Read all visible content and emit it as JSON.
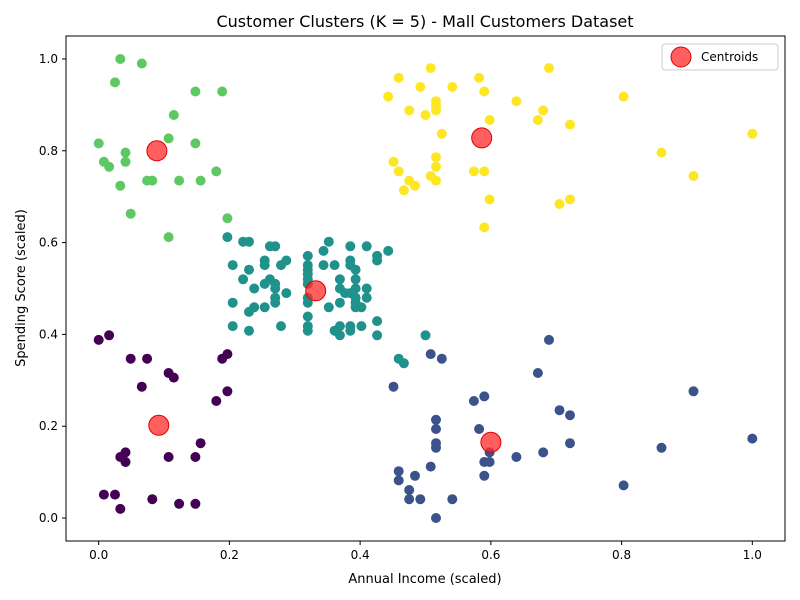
{
  "chart_data": {
    "type": "scatter",
    "title": "Customer Clusters (K = 5) - Mall Customers Dataset",
    "xlabel": "Annual Income (scaled)",
    "ylabel": "Spending Score (scaled)",
    "xlim": [
      -0.05,
      1.05
    ],
    "ylim": [
      -0.05,
      1.05
    ],
    "xticks": [
      "0.0",
      "0.2",
      "0.4",
      "0.6",
      "0.8",
      "1.0"
    ],
    "yticks": [
      "0.0",
      "0.2",
      "0.4",
      "0.6",
      "0.8",
      "1.0"
    ],
    "grid": false,
    "legend": {
      "position": "top-right",
      "entries": [
        "Centroids"
      ]
    },
    "colors": {
      "cluster_purple": "#440154",
      "cluster_navy": "#3b528b",
      "cluster_teal": "#21918c",
      "cluster_green": "#5ec962",
      "cluster_yellow": "#fde725",
      "centroid": "#ff2a2a"
    },
    "series": [
      {
        "color": "#440154",
        "points": [
          [
            0.0,
            0.388
          ],
          [
            0.016,
            0.398
          ],
          [
            0.049,
            0.347
          ],
          [
            0.074,
            0.347
          ],
          [
            0.066,
            0.286
          ],
          [
            0.107,
            0.316
          ],
          [
            0.115,
            0.306
          ],
          [
            0.189,
            0.347
          ],
          [
            0.197,
            0.357
          ],
          [
            0.18,
            0.255
          ],
          [
            0.197,
            0.276
          ],
          [
            0.041,
            0.143
          ],
          [
            0.033,
            0.133
          ],
          [
            0.041,
            0.122
          ],
          [
            0.107,
            0.133
          ],
          [
            0.148,
            0.133
          ],
          [
            0.156,
            0.163
          ],
          [
            0.008,
            0.051
          ],
          [
            0.025,
            0.051
          ],
          [
            0.033,
            0.02
          ],
          [
            0.082,
            0.041
          ],
          [
            0.123,
            0.031
          ],
          [
            0.148,
            0.031
          ]
        ]
      },
      {
        "color": "#3b528b",
        "points": [
          [
            0.508,
            0.357
          ],
          [
            0.525,
            0.347
          ],
          [
            0.451,
            0.286
          ],
          [
            0.689,
            0.388
          ],
          [
            0.672,
            0.316
          ],
          [
            0.574,
            0.255
          ],
          [
            0.59,
            0.265
          ],
          [
            0.91,
            0.276
          ],
          [
            0.705,
            0.235
          ],
          [
            0.721,
            0.224
          ],
          [
            0.516,
            0.214
          ],
          [
            0.516,
            0.194
          ],
          [
            0.582,
            0.194
          ],
          [
            0.516,
            0.163
          ],
          [
            0.516,
            0.153
          ],
          [
            0.721,
            0.163
          ],
          [
            0.598,
            0.143
          ],
          [
            0.639,
            0.133
          ],
          [
            0.68,
            0.143
          ],
          [
            0.59,
            0.122
          ],
          [
            0.598,
            0.122
          ],
          [
            0.459,
            0.102
          ],
          [
            0.508,
            0.112
          ],
          [
            0.861,
            0.153
          ],
          [
            1.0,
            0.173
          ],
          [
            0.459,
            0.082
          ],
          [
            0.484,
            0.092
          ],
          [
            0.59,
            0.092
          ],
          [
            0.475,
            0.061
          ],
          [
            0.475,
            0.041
          ],
          [
            0.492,
            0.041
          ],
          [
            0.541,
            0.041
          ],
          [
            0.803,
            0.071
          ],
          [
            0.516,
            0.0
          ]
        ]
      },
      {
        "color": "#21918c",
        "points": [
          [
            0.197,
            0.612
          ],
          [
            0.221,
            0.602
          ],
          [
            0.23,
            0.602
          ],
          [
            0.262,
            0.592
          ],
          [
            0.27,
            0.592
          ],
          [
            0.344,
            0.582
          ],
          [
            0.352,
            0.602
          ],
          [
            0.385,
            0.592
          ],
          [
            0.41,
            0.592
          ],
          [
            0.443,
            0.582
          ],
          [
            0.32,
            0.571
          ],
          [
            0.426,
            0.571
          ],
          [
            0.254,
            0.561
          ],
          [
            0.287,
            0.561
          ],
          [
            0.385,
            0.561
          ],
          [
            0.426,
            0.561
          ],
          [
            0.205,
            0.551
          ],
          [
            0.254,
            0.551
          ],
          [
            0.279,
            0.551
          ],
          [
            0.32,
            0.551
          ],
          [
            0.344,
            0.551
          ],
          [
            0.361,
            0.551
          ],
          [
            0.385,
            0.551
          ],
          [
            0.23,
            0.541
          ],
          [
            0.32,
            0.541
          ],
          [
            0.393,
            0.541
          ],
          [
            0.32,
            0.531
          ],
          [
            0.221,
            0.52
          ],
          [
            0.262,
            0.52
          ],
          [
            0.32,
            0.52
          ],
          [
            0.369,
            0.52
          ],
          [
            0.393,
            0.52
          ],
          [
            0.254,
            0.51
          ],
          [
            0.27,
            0.51
          ],
          [
            0.32,
            0.51
          ],
          [
            0.238,
            0.5
          ],
          [
            0.27,
            0.5
          ],
          [
            0.369,
            0.5
          ],
          [
            0.393,
            0.5
          ],
          [
            0.41,
            0.5
          ],
          [
            0.287,
            0.49
          ],
          [
            0.377,
            0.49
          ],
          [
            0.385,
            0.49
          ],
          [
            0.27,
            0.48
          ],
          [
            0.32,
            0.48
          ],
          [
            0.393,
            0.48
          ],
          [
            0.41,
            0.48
          ],
          [
            0.205,
            0.469
          ],
          [
            0.27,
            0.469
          ],
          [
            0.32,
            0.469
          ],
          [
            0.369,
            0.469
          ],
          [
            0.393,
            0.469
          ],
          [
            0.238,
            0.459
          ],
          [
            0.254,
            0.459
          ],
          [
            0.352,
            0.459
          ],
          [
            0.393,
            0.459
          ],
          [
            0.402,
            0.459
          ],
          [
            0.23,
            0.449
          ],
          [
            0.32,
            0.439
          ],
          [
            0.426,
            0.429
          ],
          [
            0.205,
            0.418
          ],
          [
            0.279,
            0.418
          ],
          [
            0.32,
            0.418
          ],
          [
            0.369,
            0.418
          ],
          [
            0.385,
            0.418
          ],
          [
            0.402,
            0.418
          ],
          [
            0.23,
            0.408
          ],
          [
            0.32,
            0.408
          ],
          [
            0.361,
            0.408
          ],
          [
            0.385,
            0.408
          ],
          [
            0.369,
            0.398
          ],
          [
            0.426,
            0.398
          ],
          [
            0.5,
            0.398
          ],
          [
            0.459,
            0.347
          ],
          [
            0.467,
            0.337
          ]
        ]
      },
      {
        "color": "#5ec962",
        "points": [
          [
            0.033,
            1.0
          ],
          [
            0.066,
            0.99
          ],
          [
            0.025,
            0.949
          ],
          [
            0.148,
            0.929
          ],
          [
            0.189,
            0.929
          ],
          [
            0.115,
            0.878
          ],
          [
            0.0,
            0.816
          ],
          [
            0.107,
            0.827
          ],
          [
            0.148,
            0.816
          ],
          [
            0.041,
            0.796
          ],
          [
            0.008,
            0.776
          ],
          [
            0.016,
            0.765
          ],
          [
            0.041,
            0.776
          ],
          [
            0.18,
            0.755
          ],
          [
            0.074,
            0.735
          ],
          [
            0.082,
            0.735
          ],
          [
            0.123,
            0.735
          ],
          [
            0.156,
            0.735
          ],
          [
            0.033,
            0.724
          ],
          [
            0.049,
            0.663
          ],
          [
            0.197,
            0.653
          ],
          [
            0.107,
            0.612
          ]
        ]
      },
      {
        "color": "#fde725",
        "points": [
          [
            0.508,
            0.98
          ],
          [
            0.689,
            0.98
          ],
          [
            0.459,
            0.959
          ],
          [
            0.582,
            0.959
          ],
          [
            0.492,
            0.939
          ],
          [
            0.541,
            0.939
          ],
          [
            0.59,
            0.929
          ],
          [
            0.443,
            0.918
          ],
          [
            0.803,
            0.918
          ],
          [
            0.516,
            0.908
          ],
          [
            0.639,
            0.908
          ],
          [
            0.516,
            0.898
          ],
          [
            0.475,
            0.888
          ],
          [
            0.516,
            0.888
          ],
          [
            0.68,
            0.888
          ],
          [
            0.5,
            0.878
          ],
          [
            0.598,
            0.867
          ],
          [
            0.672,
            0.867
          ],
          [
            0.721,
            0.857
          ],
          [
            0.525,
            0.837
          ],
          [
            1.0,
            0.837
          ],
          [
            0.861,
            0.796
          ],
          [
            0.516,
            0.786
          ],
          [
            0.451,
            0.776
          ],
          [
            0.516,
            0.765
          ],
          [
            0.459,
            0.755
          ],
          [
            0.574,
            0.755
          ],
          [
            0.59,
            0.755
          ],
          [
            0.508,
            0.745
          ],
          [
            0.91,
            0.745
          ],
          [
            0.475,
            0.735
          ],
          [
            0.516,
            0.735
          ],
          [
            0.484,
            0.724
          ],
          [
            0.467,
            0.714
          ],
          [
            0.598,
            0.694
          ],
          [
            0.721,
            0.694
          ],
          [
            0.705,
            0.684
          ],
          [
            0.59,
            0.633
          ]
        ]
      }
    ],
    "centroids": {
      "name": "Centroids",
      "color": "#ff2a2a",
      "points": [
        [
          0.089,
          0.8
        ],
        [
          0.586,
          0.828
        ],
        [
          0.332,
          0.495
        ],
        [
          0.092,
          0.202
        ],
        [
          0.6,
          0.165
        ]
      ]
    }
  }
}
